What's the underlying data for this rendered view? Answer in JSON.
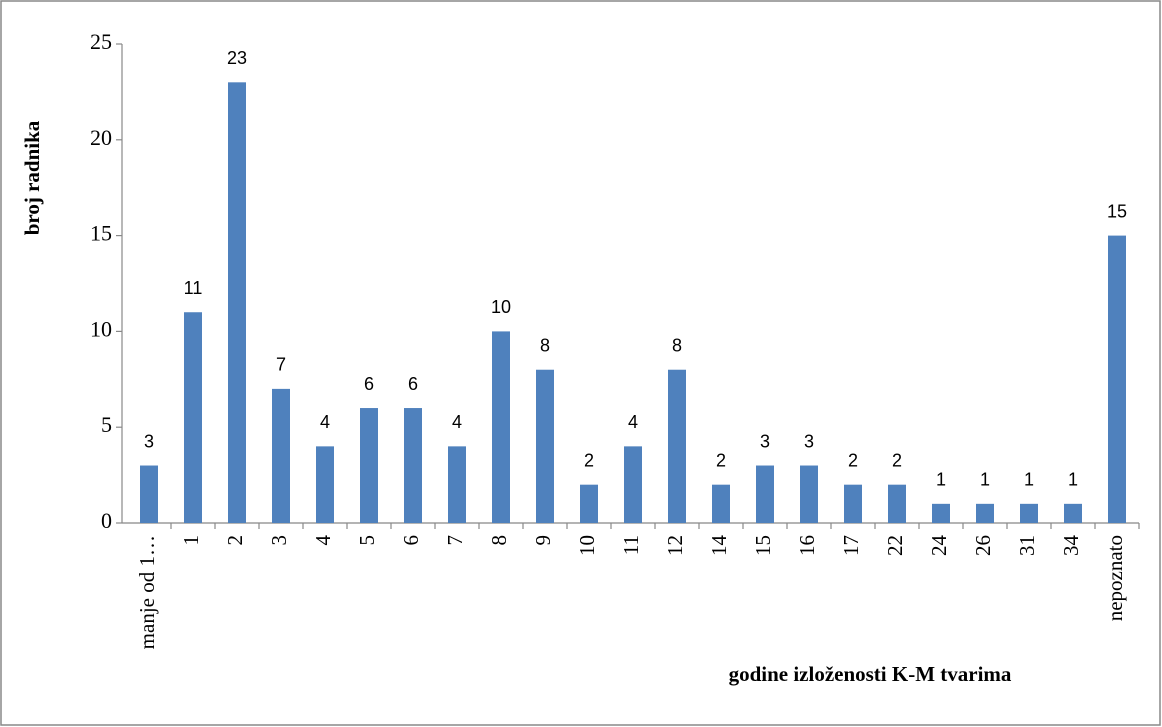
{
  "chart_data": {
    "type": "bar",
    "categories": [
      "manje od 1…",
      "1",
      "2",
      "3",
      "4",
      "5",
      "6",
      "7",
      "8",
      "9",
      "10",
      "11",
      "12",
      "14",
      "15",
      "16",
      "17",
      "22",
      "24",
      "26",
      "31",
      "34",
      "nepoznato"
    ],
    "values": [
      3,
      11,
      23,
      7,
      4,
      6,
      6,
      4,
      10,
      8,
      2,
      4,
      8,
      2,
      3,
      3,
      2,
      2,
      1,
      1,
      1,
      1,
      15
    ],
    "color": "#4f81bd",
    "y_label": "broj radnika",
    "x_label": "godine izloženosti K-M tvarima",
    "ylim": [
      0,
      25
    ],
    "yticks": [
      0,
      5,
      10,
      15,
      20,
      25
    ],
    "grid": false
  }
}
